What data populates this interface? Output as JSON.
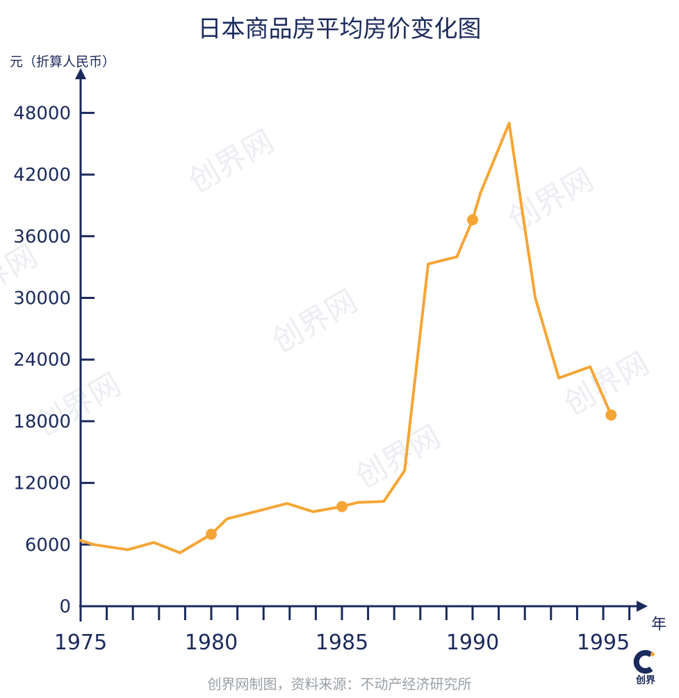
{
  "chart_data": {
    "type": "line",
    "title": "日本商品房平均房价变化图",
    "ylabel": "元（折算人民币）",
    "xlabel": "年",
    "ylim": [
      0,
      50000
    ],
    "xlim": [
      1975,
      1996
    ],
    "yticks": [
      0,
      6000,
      12000,
      18000,
      24000,
      30000,
      36000,
      42000,
      48000
    ],
    "xtick_labels": [
      "1975",
      "1980",
      "1985",
      "1990",
      "1995"
    ],
    "xtick_values": [
      1975,
      1980,
      1985,
      1990,
      1995
    ],
    "grid": false,
    "colors": {
      "line": "#f5a535",
      "axis": "#1b2a5c",
      "watermark": "#eceef2"
    },
    "series": [
      {
        "x": [
          1975,
          1975.5,
          1976.8,
          1977.8,
          1978.8,
          1980,
          1980.6,
          1982.9,
          1983.9,
          1985,
          1985.6,
          1986.6,
          1987.4,
          1988.3,
          1989.4,
          1990,
          1990.3,
          1991.4,
          1992.4,
          1993.3,
          1994.5,
          1995.3
        ],
        "y": [
          6400,
          6000,
          5500,
          6200,
          5200,
          7000,
          8500,
          10000,
          9200,
          9700,
          10100,
          10200,
          13200,
          33300,
          34000,
          37600,
          40200,
          47000,
          30000,
          22200,
          23300,
          18600
        ]
      }
    ],
    "markers": [
      {
        "x": 1980,
        "y": 7000
      },
      {
        "x": 1985,
        "y": 9700
      },
      {
        "x": 1990,
        "y": 37600
      },
      {
        "x": 1995.3,
        "y": 18600
      }
    ]
  },
  "source_note": "创界网制图，资料来源：不动产经济研究所",
  "watermark_text": "创界网",
  "logo": {
    "text": "创界"
  }
}
